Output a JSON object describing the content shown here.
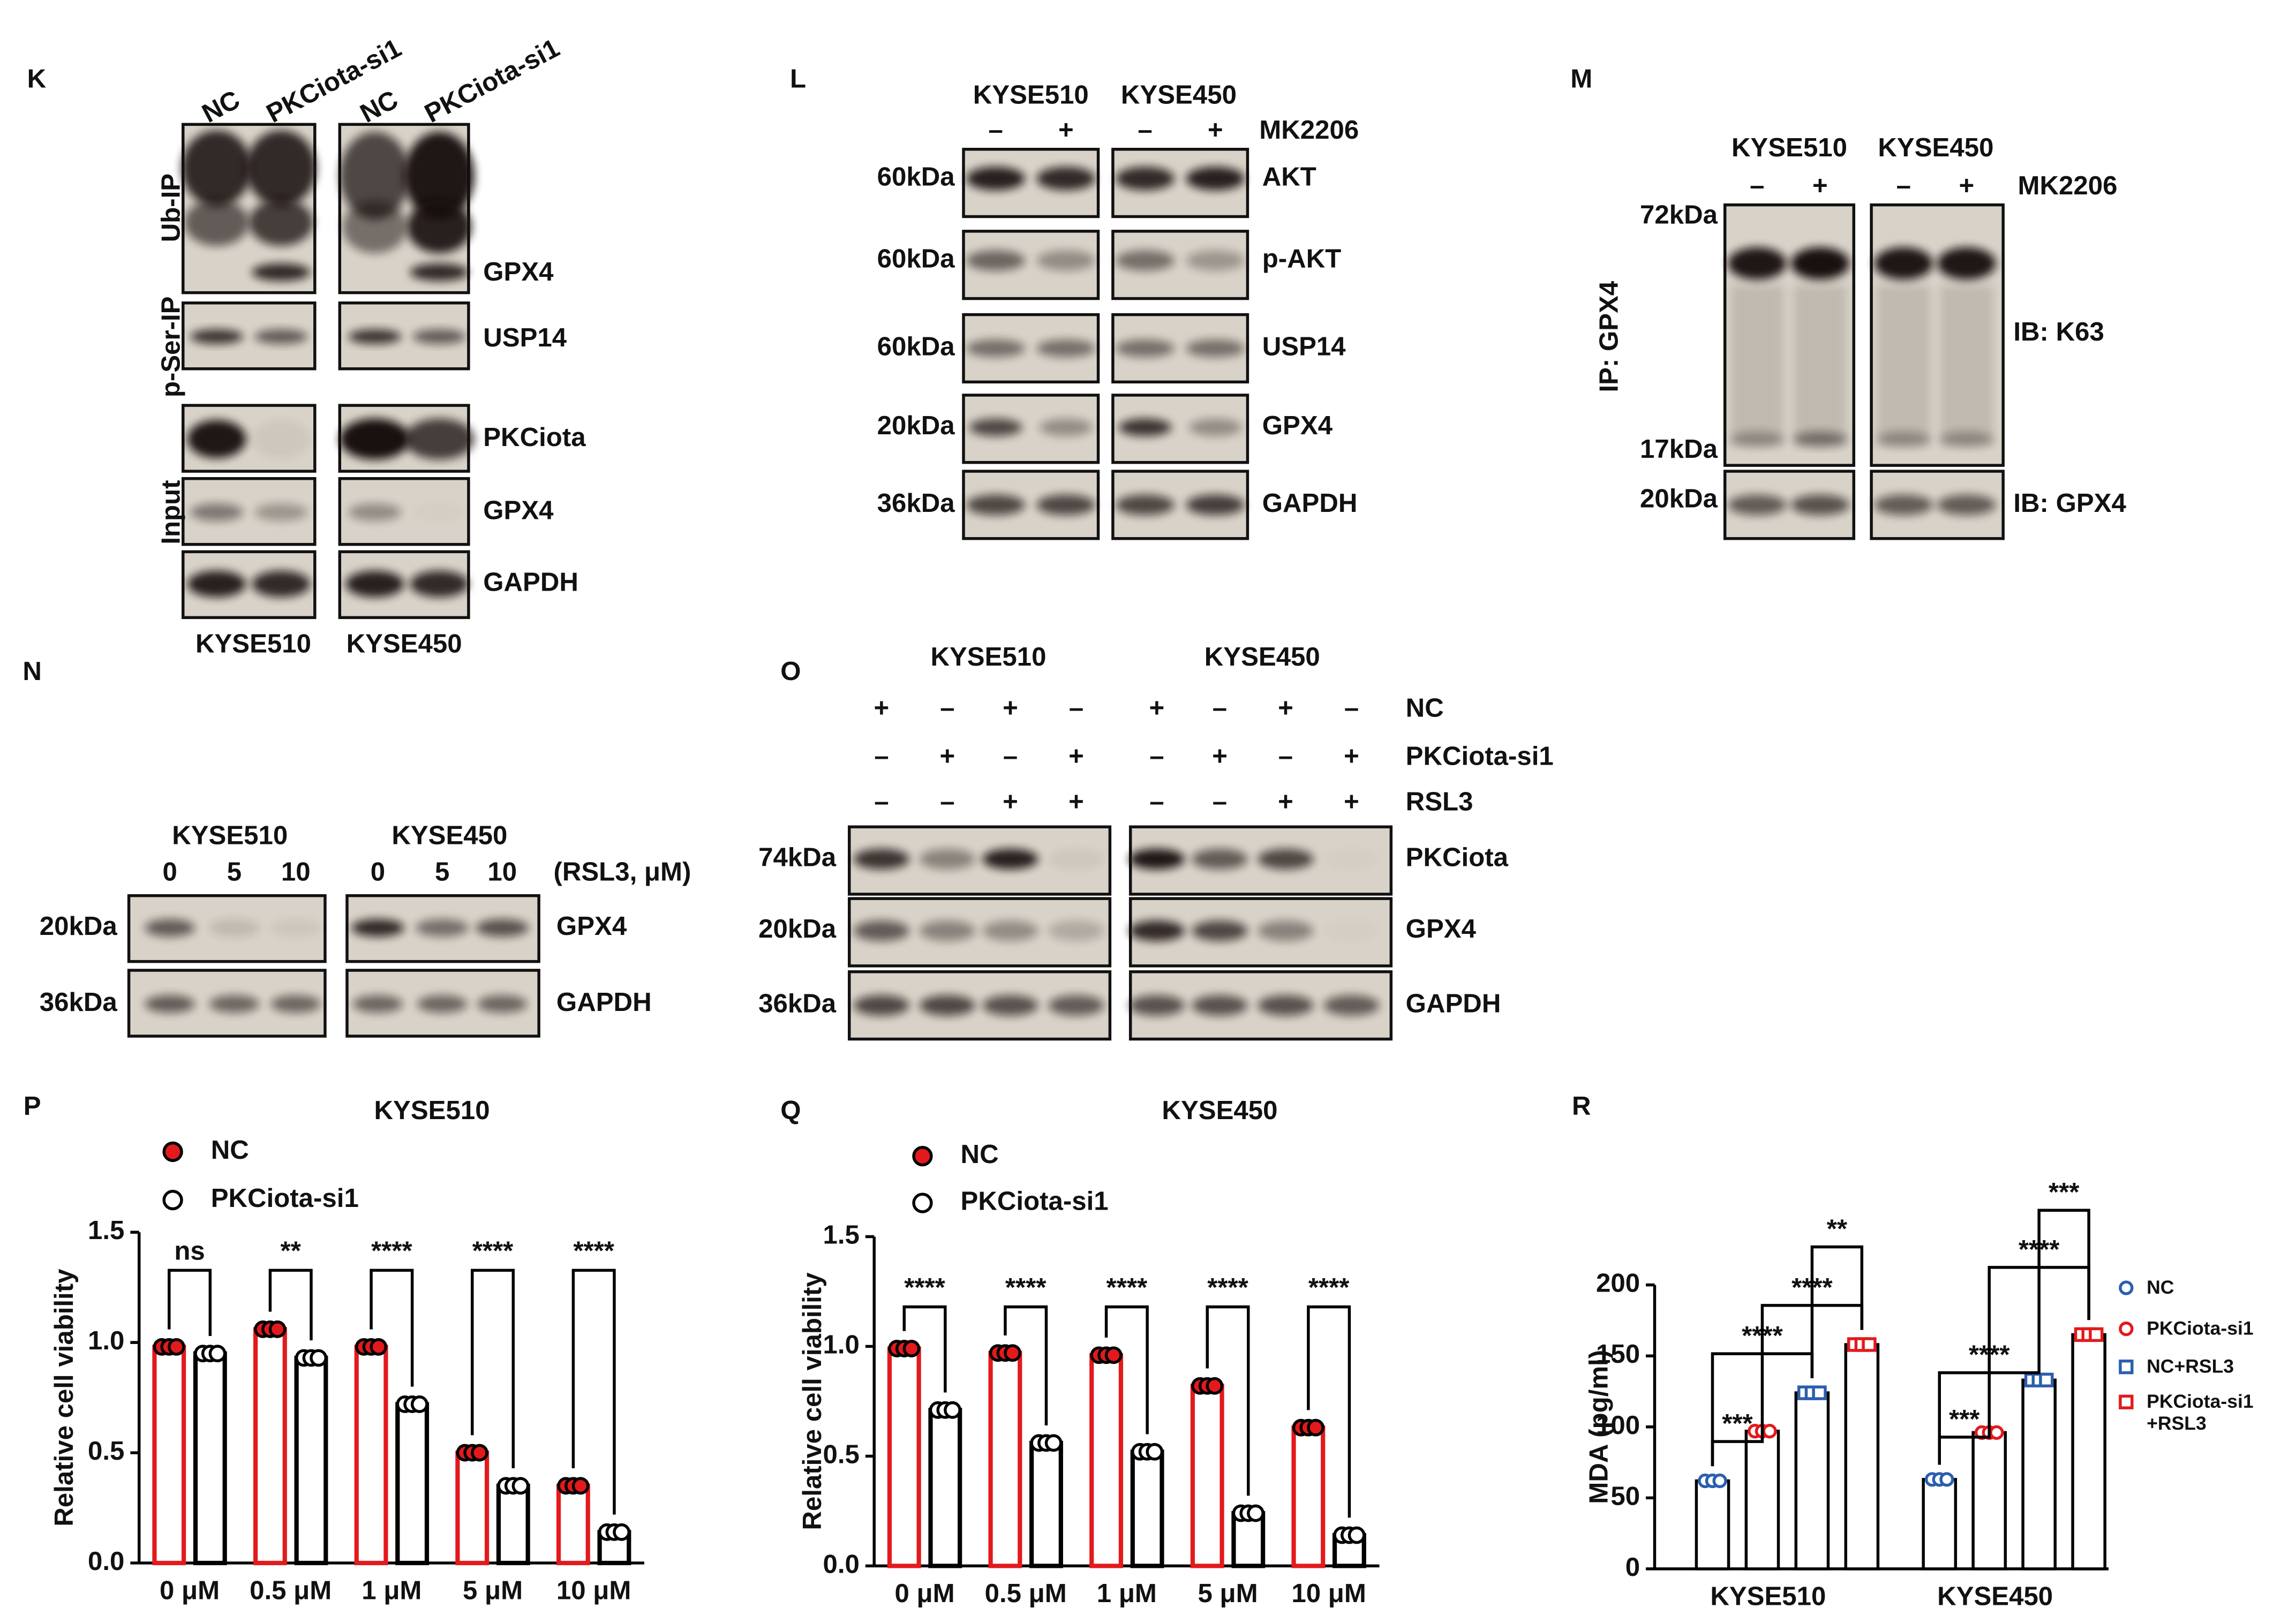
{
  "figure": {
    "K": {
      "letter": "K",
      "lanes": [
        "NC",
        "PKCiota-si1",
        "NC",
        "PKCiota-si1"
      ],
      "groups": [
        "Ub-IP",
        "p-Ser-IP",
        "Input"
      ],
      "proteins": [
        "GPX4",
        "USP14",
        "PKCiota",
        "GPX4",
        "GAPDH"
      ],
      "cell_lines": [
        "KYSE510",
        "KYSE450"
      ]
    },
    "L": {
      "letter": "L",
      "cell_lines": [
        "KYSE510",
        "KYSE450"
      ],
      "signs": [
        "–",
        "+",
        "–",
        "+"
      ],
      "treatment": "MK2206",
      "markers": [
        "60kDa",
        "60kDa",
        "60kDa",
        "20kDa",
        "36kDa"
      ],
      "proteins": [
        "AKT",
        "p-AKT",
        "USP14",
        "GPX4",
        "GAPDH"
      ]
    },
    "M": {
      "letter": "M",
      "cell_lines": [
        "KYSE510",
        "KYSE450"
      ],
      "signs": [
        "–",
        "+",
        "–",
        "+"
      ],
      "treatment": "MK2206",
      "ip": "IP: GPX4",
      "markers": [
        "72kDa",
        "17kDa",
        "20kDa"
      ],
      "blots": [
        "IB: K63",
        "IB: GPX4"
      ]
    },
    "N": {
      "letter": "N",
      "cell_lines": [
        "KYSE510",
        "KYSE450"
      ],
      "doses": [
        0,
        5,
        10,
        0,
        5,
        10
      ],
      "dose_unit": "(RSL3, μM)",
      "markers": [
        "20kDa",
        "36kDa"
      ],
      "proteins": [
        "GPX4",
        "GAPDH"
      ]
    },
    "O": {
      "letter": "O",
      "cell_lines": [
        "KYSE510",
        "KYSE450"
      ],
      "conditions": [
        {
          "name": "NC",
          "signs": [
            "+",
            "–",
            "+",
            "–",
            "+",
            "–",
            "+",
            "–"
          ]
        },
        {
          "name": "PKCiota-si1",
          "signs": [
            "–",
            "+",
            "–",
            "+",
            "–",
            "+",
            "–",
            "+"
          ]
        },
        {
          "name": "RSL3",
          "signs": [
            "–",
            "–",
            "+",
            "+",
            "–",
            "–",
            "+",
            "+"
          ]
        }
      ],
      "markers": [
        "74kDa",
        "20kDa",
        "36kDa"
      ],
      "proteins": [
        "PKCiota",
        "GPX4",
        "GAPDH"
      ]
    }
  },
  "chart_data": [
    {
      "type": "bar",
      "letter": "P",
      "title": "KYSE510",
      "y_label": "Relative cell viability",
      "categories": [
        "0 μM",
        "0.5 μM",
        "1 μM",
        "5 μM",
        "10 μM"
      ],
      "series": [
        {
          "name": "NC",
          "color": "#e31a1c",
          "values": [
            0.98,
            1.06,
            0.98,
            0.5,
            0.35
          ]
        },
        {
          "name": "PKCiota-si1",
          "color": "#000000",
          "values": [
            0.95,
            0.93,
            0.72,
            0.35,
            0.14
          ]
        }
      ],
      "ylim": [
        0,
        1.5
      ],
      "yticks": [
        {
          "value": 0,
          "label": "0.0"
        },
        {
          "value": 0.5,
          "label": "0.5"
        },
        {
          "value": 1,
          "label": "1.0"
        },
        {
          "value": 1.5,
          "label": "1.5"
        }
      ],
      "annotations": [
        "ns",
        "**",
        "****",
        "****",
        "****"
      ]
    },
    {
      "type": "bar",
      "letter": "Q",
      "title": "KYSE450",
      "y_label": "Relative cell viability",
      "categories": [
        "0 μM",
        "0.5 μM",
        "1 μM",
        "5 μM",
        "10 μM"
      ],
      "series": [
        {
          "name": "NC",
          "color": "#e31a1c",
          "values": [
            0.99,
            0.97,
            0.96,
            0.82,
            0.63
          ]
        },
        {
          "name": "PKCiota-si1",
          "color": "#000000",
          "values": [
            0.71,
            0.56,
            0.52,
            0.24,
            0.14
          ]
        }
      ],
      "ylim": [
        0,
        1.5
      ],
      "yticks": [
        {
          "value": 0,
          "label": "0.0"
        },
        {
          "value": 0.5,
          "label": "0.5"
        },
        {
          "value": 1,
          "label": "1.0"
        },
        {
          "value": 1.5,
          "label": "1.5"
        }
      ],
      "annotations": [
        "****",
        "****",
        "****",
        "****",
        "****"
      ]
    },
    {
      "type": "grouped-bar",
      "letter": "R",
      "y_label": "MDA (pg/ml)",
      "categories": [
        "KYSE510",
        "KYSE450"
      ],
      "series": [
        {
          "name": "NC",
          "color": "#2b5fad",
          "marker": "circle",
          "values": [
            62,
            63
          ]
        },
        {
          "name": "PKCiota-si1",
          "color": "#e31a1c",
          "marker": "circle",
          "values": [
            97,
            96
          ]
        },
        {
          "name": "NC+RSL3",
          "color": "#2b5fad",
          "marker": "square",
          "values": [
            124,
            133
          ]
        },
        {
          "name": "PKCiota-si1 +RSL3",
          "color": "#e31a1c",
          "marker": "square",
          "values": [
            158,
            165
          ]
        }
      ],
      "ylim": [
        0,
        200
      ],
      "yticks": [
        0,
        50,
        100,
        150,
        200
      ],
      "annotations": [
        [
          "***",
          "****",
          "****",
          "**"
        ],
        [
          "***",
          "****",
          "****",
          "***"
        ]
      ]
    }
  ]
}
